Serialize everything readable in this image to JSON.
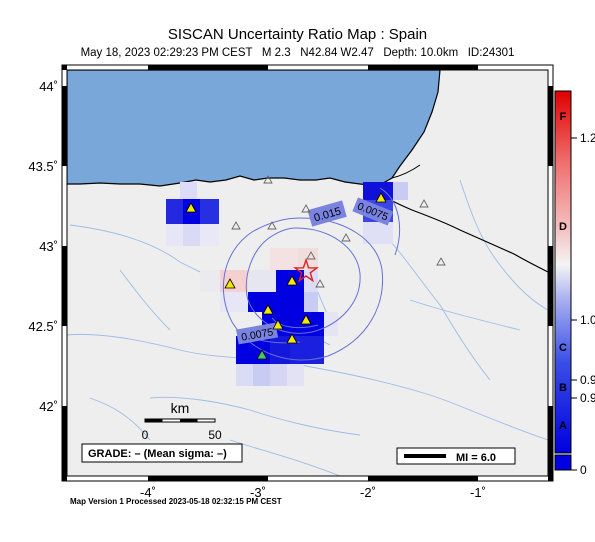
{
  "header": {
    "title": "SISCAN Uncertainty Ratio Map : Spain",
    "event_info": "May 18, 2023 02:29:23 PM CEST   M 2.3   N42.84 W2.47   Depth: 10.0km   ID:24301"
  },
  "footer": {
    "processed": "Map Version 1 Processed 2023-05-18 02:32:15 PM CEST"
  },
  "axes": {
    "x_ticks": [
      "-4˚",
      "-3˚",
      "-2˚",
      "-1˚"
    ],
    "y_ticks": [
      "44˚",
      "43.5˚",
      "43˚",
      "42.5˚",
      "42˚"
    ]
  },
  "map": {
    "lon_range": [
      -4.5,
      -0.6
    ],
    "lat_range": [
      41.6,
      44.25
    ],
    "epicenter": {
      "lon": -2.47,
      "lat": 42.84
    },
    "contour_labels": [
      "0.015",
      "0.0075",
      "0.0075"
    ],
    "colors": {
      "sea": "#7aa7d9",
      "land": "#eeeeee",
      "border": "#000000",
      "contour": "#6670d6",
      "epicenter": "#e02020"
    }
  },
  "scale_bar": {
    "unit": "km",
    "ticks": [
      "0",
      "50"
    ]
  },
  "grade": {
    "text": "GRADE: – (Mean sigma: –)"
  },
  "mi_legend": {
    "label": "MI = 6.0"
  },
  "colorbar": {
    "letters": [
      "F",
      "D",
      "C",
      "B",
      "A"
    ],
    "values": [
      "1.2",
      "1.0",
      "0.9",
      "0.9",
      "0"
    ]
  }
}
